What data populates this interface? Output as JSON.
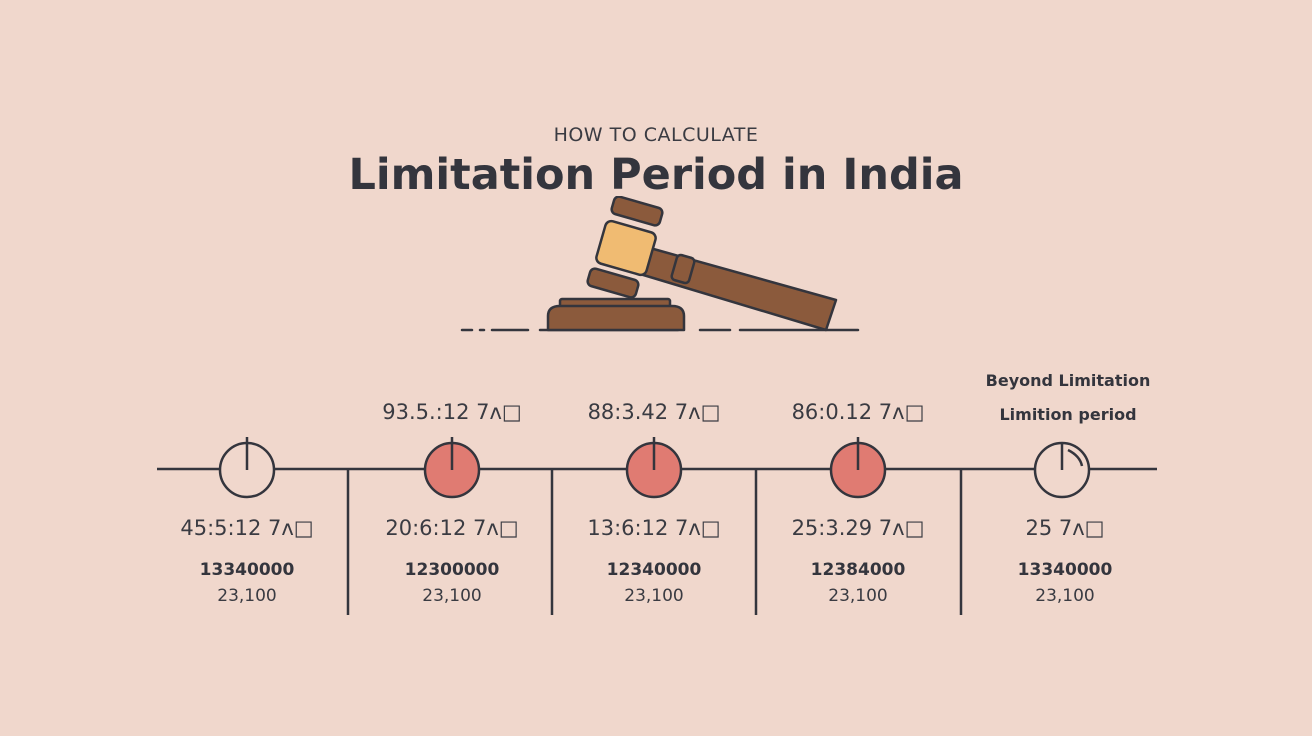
{
  "header": {
    "subtitle": "HOW TO CALCULATE",
    "title": "Limitation Period in India"
  },
  "stages": [
    {
      "top_label": "",
      "bottom_label": "45:5:12 7ʌ□",
      "amount": "13340000",
      "ratio": "23,100",
      "marker": "outline"
    },
    {
      "top_label": "93.5.:12 7ʌ□",
      "bottom_label": "20:6:12 7ʌ□",
      "amount": "12300000",
      "ratio": "23,100",
      "marker": "filled"
    },
    {
      "top_label": "88:3.42 7ʌ□",
      "bottom_label": "13:6:12 7ʌ□",
      "amount": "12340000",
      "ratio": "23,100",
      "marker": "filled"
    },
    {
      "top_label": "86:0.12 7ʌ□",
      "bottom_label": "25:3.29 7ʌ□",
      "amount": "12384000",
      "ratio": "23,100",
      "marker": "filled"
    },
    {
      "top_label": "",
      "bottom_label": "25 7ʌ□",
      "amount": "13340000",
      "ratio": "23,100",
      "marker": "outline-clock"
    }
  ],
  "beyond": {
    "line1": "Beyond Limitation",
    "line2": "Limition period"
  },
  "colors": {
    "background": "#f0d7cc",
    "text": "#34353d",
    "marker_fill": "#e07b72",
    "gavel_wood": "#8b5a3c",
    "gavel_band": "#f0bb72"
  }
}
